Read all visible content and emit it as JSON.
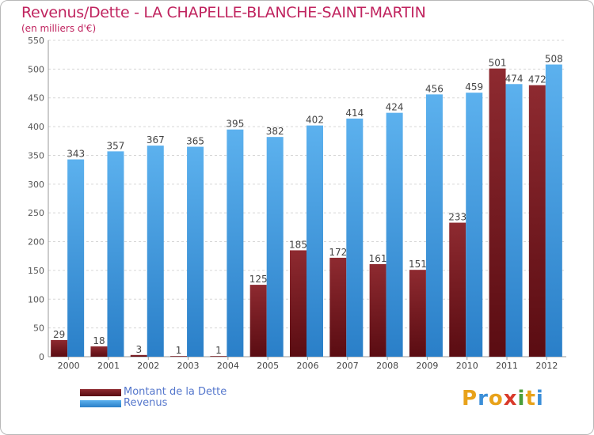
{
  "title": "Revenus/Dette - LA CHAPELLE-BLANCHE-SAINT-MARTIN",
  "subtitle": "(en milliers d'€)",
  "colors": {
    "debt": "#7a1a22",
    "revenue": "#4aa3e6",
    "title": "#c0245f",
    "legend_text": "#5577cc"
  },
  "chart_data": {
    "type": "bar",
    "categories": [
      "2000",
      "2001",
      "2002",
      "2003",
      "2004",
      "2005",
      "2006",
      "2007",
      "2008",
      "2009",
      "2010",
      "2011",
      "2012"
    ],
    "series": [
      {
        "name": "Montant de la Dette",
        "values": [
          29,
          18,
          3,
          1,
          1,
          125,
          185,
          172,
          161,
          151,
          233,
          501,
          472
        ]
      },
      {
        "name": "Revenus",
        "values": [
          343,
          357,
          367,
          365,
          395,
          382,
          402,
          414,
          424,
          456,
          459,
          474,
          508
        ]
      }
    ],
    "title": "Revenus/Dette - LA CHAPELLE-BLANCHE-SAINT-MARTIN",
    "ylabel": "(en milliers d'€)",
    "ylim": [
      0,
      550
    ],
    "yticks": [
      0,
      50,
      100,
      150,
      200,
      250,
      300,
      350,
      400,
      450,
      500,
      550
    ],
    "grid": true,
    "legend": "bottom-left"
  },
  "legend": [
    {
      "label": "Montant de la Dette"
    },
    {
      "label": "Revenus"
    }
  ],
  "logo": {
    "text": "Proxiti",
    "letters": [
      "P",
      "r",
      "o",
      "x",
      "i",
      "t",
      "i"
    ],
    "letter_colors": [
      "#e8a21a",
      "#3b8fd8",
      "#e8a21a",
      "#d93a2a",
      "#4a9e3a",
      "#e8a21a",
      "#3b8fd8"
    ]
  }
}
